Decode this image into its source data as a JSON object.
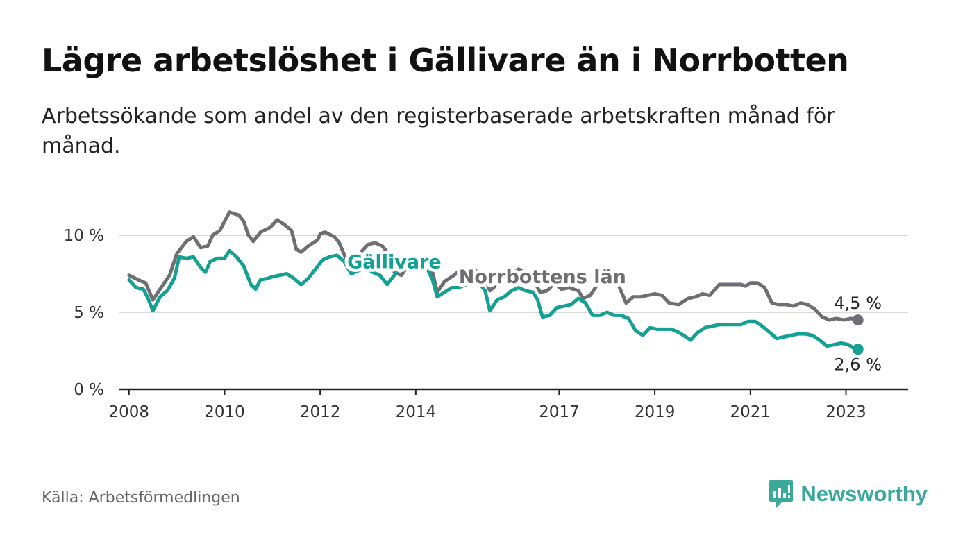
{
  "title": "Lägre arbetslöshet i Gällivare än i Norrbotten",
  "subtitle": "Arbetssökande som andel av den registerbaserade arbetskraften månad för månad.",
  "source": "Källa: Arbetsförmedlingen",
  "brand": {
    "name": "Newsworthy",
    "icon": "newsworthy-logo-icon",
    "color": "#3aa89a"
  },
  "chart_data": {
    "type": "line",
    "title": "Lägre arbetslöshet i Gällivare än i Norrbotten",
    "xlabel": "",
    "ylabel": "",
    "xlim": [
      2007.8,
      2024.3
    ],
    "ylim": [
      0,
      10
    ],
    "grid": true,
    "x_ticks": [
      {
        "value": 2008,
        "label": "2008"
      },
      {
        "value": 2010,
        "label": "2010"
      },
      {
        "value": 2012,
        "label": "2012"
      },
      {
        "value": 2014,
        "label": "2014"
      },
      {
        "value": 2017,
        "label": "2017"
      },
      {
        "value": 2019,
        "label": "2019"
      },
      {
        "value": 2021,
        "label": "2021"
      },
      {
        "value": 2023,
        "label": "2023"
      }
    ],
    "y_ticks": [
      {
        "value": 0,
        "label": "0 %"
      },
      {
        "value": 5,
        "label": "5 %"
      },
      {
        "value": 10,
        "label": "10 %"
      }
    ],
    "series": [
      {
        "name": "Norrbottens län",
        "color": "#6e6e73",
        "end_label": "4,5 %",
        "label_anchor": [
          2016.65,
          6.9
        ],
        "points": [
          [
            2008.0,
            7.4
          ],
          [
            2008.2,
            7.1
          ],
          [
            2008.35,
            6.9
          ],
          [
            2008.5,
            5.8
          ],
          [
            2008.65,
            6.5
          ],
          [
            2008.85,
            7.4
          ],
          [
            2009.0,
            8.8
          ],
          [
            2009.2,
            9.6
          ],
          [
            2009.35,
            9.9
          ],
          [
            2009.5,
            9.2
          ],
          [
            2009.65,
            9.3
          ],
          [
            2009.75,
            10.0
          ],
          [
            2009.9,
            10.3
          ],
          [
            2010.0,
            10.9
          ],
          [
            2010.1,
            11.5
          ],
          [
            2010.3,
            11.3
          ],
          [
            2010.4,
            10.9
          ],
          [
            2010.5,
            10.0
          ],
          [
            2010.6,
            9.6
          ],
          [
            2010.75,
            10.2
          ],
          [
            2010.95,
            10.5
          ],
          [
            2011.1,
            11.0
          ],
          [
            2011.25,
            10.7
          ],
          [
            2011.4,
            10.3
          ],
          [
            2011.5,
            9.1
          ],
          [
            2011.6,
            8.9
          ],
          [
            2011.75,
            9.3
          ],
          [
            2011.95,
            9.7
          ],
          [
            2012.0,
            10.1
          ],
          [
            2012.1,
            10.2
          ],
          [
            2012.3,
            9.9
          ],
          [
            2012.4,
            9.5
          ],
          [
            2012.55,
            8.4
          ],
          [
            2012.7,
            8.1
          ],
          [
            2012.85,
            8.9
          ],
          [
            2013.0,
            9.4
          ],
          [
            2013.15,
            9.5
          ],
          [
            2013.3,
            9.3
          ],
          [
            2013.45,
            8.7
          ],
          [
            2013.55,
            7.6
          ],
          [
            2013.7,
            7.4
          ],
          [
            2013.85,
            8.1
          ],
          [
            2014.0,
            8.5
          ],
          [
            2014.2,
            8.2
          ],
          [
            2014.35,
            7.6
          ],
          [
            2014.45,
            6.3
          ],
          [
            2014.6,
            7.0
          ],
          [
            2014.8,
            7.4
          ],
          [
            2014.95,
            7.8
          ],
          [
            2015.1,
            7.8
          ],
          [
            2015.25,
            7.7
          ],
          [
            2015.4,
            7.5
          ],
          [
            2015.55,
            6.4
          ],
          [
            2015.7,
            6.8
          ],
          [
            2015.85,
            7.3
          ],
          [
            2016.0,
            7.5
          ],
          [
            2016.15,
            7.8
          ],
          [
            2016.3,
            7.6
          ],
          [
            2016.45,
            7.2
          ],
          [
            2016.6,
            6.3
          ],
          [
            2016.75,
            6.4
          ],
          [
            2016.9,
            6.9
          ],
          [
            2017.05,
            6.5
          ],
          [
            2017.2,
            6.6
          ],
          [
            2017.4,
            6.4
          ],
          [
            2017.5,
            5.9
          ],
          [
            2017.65,
            6.1
          ],
          [
            2017.8,
            6.8
          ],
          [
            2017.95,
            6.9
          ],
          [
            2018.1,
            7.0
          ],
          [
            2018.25,
            6.7
          ],
          [
            2018.4,
            5.6
          ],
          [
            2018.55,
            6.0
          ],
          [
            2018.7,
            6.0
          ],
          [
            2018.85,
            6.1
          ],
          [
            2019.0,
            6.2
          ],
          [
            2019.15,
            6.1
          ],
          [
            2019.3,
            5.6
          ],
          [
            2019.5,
            5.5
          ],
          [
            2019.7,
            5.9
          ],
          [
            2019.85,
            6.0
          ],
          [
            2020.0,
            6.2
          ],
          [
            2020.15,
            6.1
          ],
          [
            2020.35,
            6.8
          ],
          [
            2020.5,
            6.8
          ],
          [
            2020.65,
            6.8
          ],
          [
            2020.8,
            6.8
          ],
          [
            2020.9,
            6.7
          ],
          [
            2021.0,
            6.9
          ],
          [
            2021.15,
            6.9
          ],
          [
            2021.3,
            6.6
          ],
          [
            2021.45,
            5.6
          ],
          [
            2021.6,
            5.5
          ],
          [
            2021.75,
            5.5
          ],
          [
            2021.9,
            5.4
          ],
          [
            2022.05,
            5.6
          ],
          [
            2022.2,
            5.5
          ],
          [
            2022.35,
            5.2
          ],
          [
            2022.5,
            4.7
          ],
          [
            2022.65,
            4.5
          ],
          [
            2022.8,
            4.6
          ],
          [
            2022.95,
            4.5
          ],
          [
            2023.1,
            4.6
          ],
          [
            2023.25,
            4.5
          ]
        ]
      },
      {
        "name": "Gällivare",
        "color": "#14a093",
        "end_label": "2,6 %",
        "label_anchor": [
          2013.55,
          7.85
        ],
        "points": [
          [
            2008.0,
            7.1
          ],
          [
            2008.15,
            6.6
          ],
          [
            2008.3,
            6.5
          ],
          [
            2008.4,
            5.9
          ],
          [
            2008.5,
            5.1
          ],
          [
            2008.65,
            6.0
          ],
          [
            2008.8,
            6.4
          ],
          [
            2008.95,
            7.2
          ],
          [
            2009.05,
            8.6
          ],
          [
            2009.2,
            8.5
          ],
          [
            2009.35,
            8.6
          ],
          [
            2009.5,
            7.9
          ],
          [
            2009.6,
            7.6
          ],
          [
            2009.7,
            8.3
          ],
          [
            2009.85,
            8.5
          ],
          [
            2010.0,
            8.5
          ],
          [
            2010.1,
            9.0
          ],
          [
            2010.25,
            8.6
          ],
          [
            2010.4,
            8.0
          ],
          [
            2010.55,
            6.8
          ],
          [
            2010.65,
            6.5
          ],
          [
            2010.75,
            7.1
          ],
          [
            2010.9,
            7.2
          ],
          [
            2011.0,
            7.3
          ],
          [
            2011.15,
            7.4
          ],
          [
            2011.3,
            7.5
          ],
          [
            2011.45,
            7.2
          ],
          [
            2011.6,
            6.8
          ],
          [
            2011.75,
            7.2
          ],
          [
            2011.9,
            7.8
          ],
          [
            2012.05,
            8.4
          ],
          [
            2012.2,
            8.6
          ],
          [
            2012.35,
            8.7
          ],
          [
            2012.5,
            8.3
          ],
          [
            2012.65,
            7.5
          ],
          [
            2012.8,
            7.7
          ],
          [
            2012.95,
            7.9
          ],
          [
            2013.1,
            7.6
          ],
          [
            2013.25,
            7.4
          ],
          [
            2013.4,
            6.8
          ],
          [
            2013.55,
            7.4
          ],
          [
            2013.7,
            8.1
          ],
          [
            2013.85,
            8.3
          ],
          [
            2014.0,
            8.4
          ],
          [
            2014.2,
            8.1
          ],
          [
            2014.35,
            7.1
          ],
          [
            2014.45,
            6.0
          ],
          [
            2014.6,
            6.3
          ],
          [
            2014.75,
            6.6
          ],
          [
            2014.9,
            6.6
          ],
          [
            2015.05,
            6.8
          ],
          [
            2015.2,
            6.9
          ],
          [
            2015.35,
            6.8
          ],
          [
            2015.45,
            6.4
          ],
          [
            2015.55,
            5.1
          ],
          [
            2015.7,
            5.8
          ],
          [
            2015.85,
            6.0
          ],
          [
            2016.0,
            6.4
          ],
          [
            2016.15,
            6.6
          ],
          [
            2016.3,
            6.4
          ],
          [
            2016.45,
            6.3
          ],
          [
            2016.55,
            5.8
          ],
          [
            2016.65,
            4.7
          ],
          [
            2016.8,
            4.8
          ],
          [
            2016.95,
            5.3
          ],
          [
            2017.1,
            5.4
          ],
          [
            2017.25,
            5.5
          ],
          [
            2017.4,
            5.9
          ],
          [
            2017.55,
            5.6
          ],
          [
            2017.7,
            4.8
          ],
          [
            2017.85,
            4.8
          ],
          [
            2018.0,
            5.0
          ],
          [
            2018.15,
            4.8
          ],
          [
            2018.3,
            4.8
          ],
          [
            2018.45,
            4.6
          ],
          [
            2018.6,
            3.8
          ],
          [
            2018.75,
            3.5
          ],
          [
            2018.9,
            4.0
          ],
          [
            2019.05,
            3.9
          ],
          [
            2019.2,
            3.9
          ],
          [
            2019.35,
            3.9
          ],
          [
            2019.5,
            3.7
          ],
          [
            2019.65,
            3.4
          ],
          [
            2019.75,
            3.2
          ],
          [
            2019.9,
            3.7
          ],
          [
            2020.05,
            4.0
          ],
          [
            2020.2,
            4.1
          ],
          [
            2020.35,
            4.2
          ],
          [
            2020.5,
            4.2
          ],
          [
            2020.65,
            4.2
          ],
          [
            2020.8,
            4.2
          ],
          [
            2020.95,
            4.4
          ],
          [
            2021.1,
            4.4
          ],
          [
            2021.25,
            4.1
          ],
          [
            2021.4,
            3.7
          ],
          [
            2021.55,
            3.3
          ],
          [
            2021.7,
            3.4
          ],
          [
            2021.85,
            3.5
          ],
          [
            2022.0,
            3.6
          ],
          [
            2022.15,
            3.6
          ],
          [
            2022.3,
            3.5
          ],
          [
            2022.45,
            3.2
          ],
          [
            2022.6,
            2.8
          ],
          [
            2022.75,
            2.9
          ],
          [
            2022.9,
            3.0
          ],
          [
            2023.05,
            2.9
          ],
          [
            2023.15,
            2.7
          ],
          [
            2023.25,
            2.6
          ]
        ]
      }
    ]
  }
}
